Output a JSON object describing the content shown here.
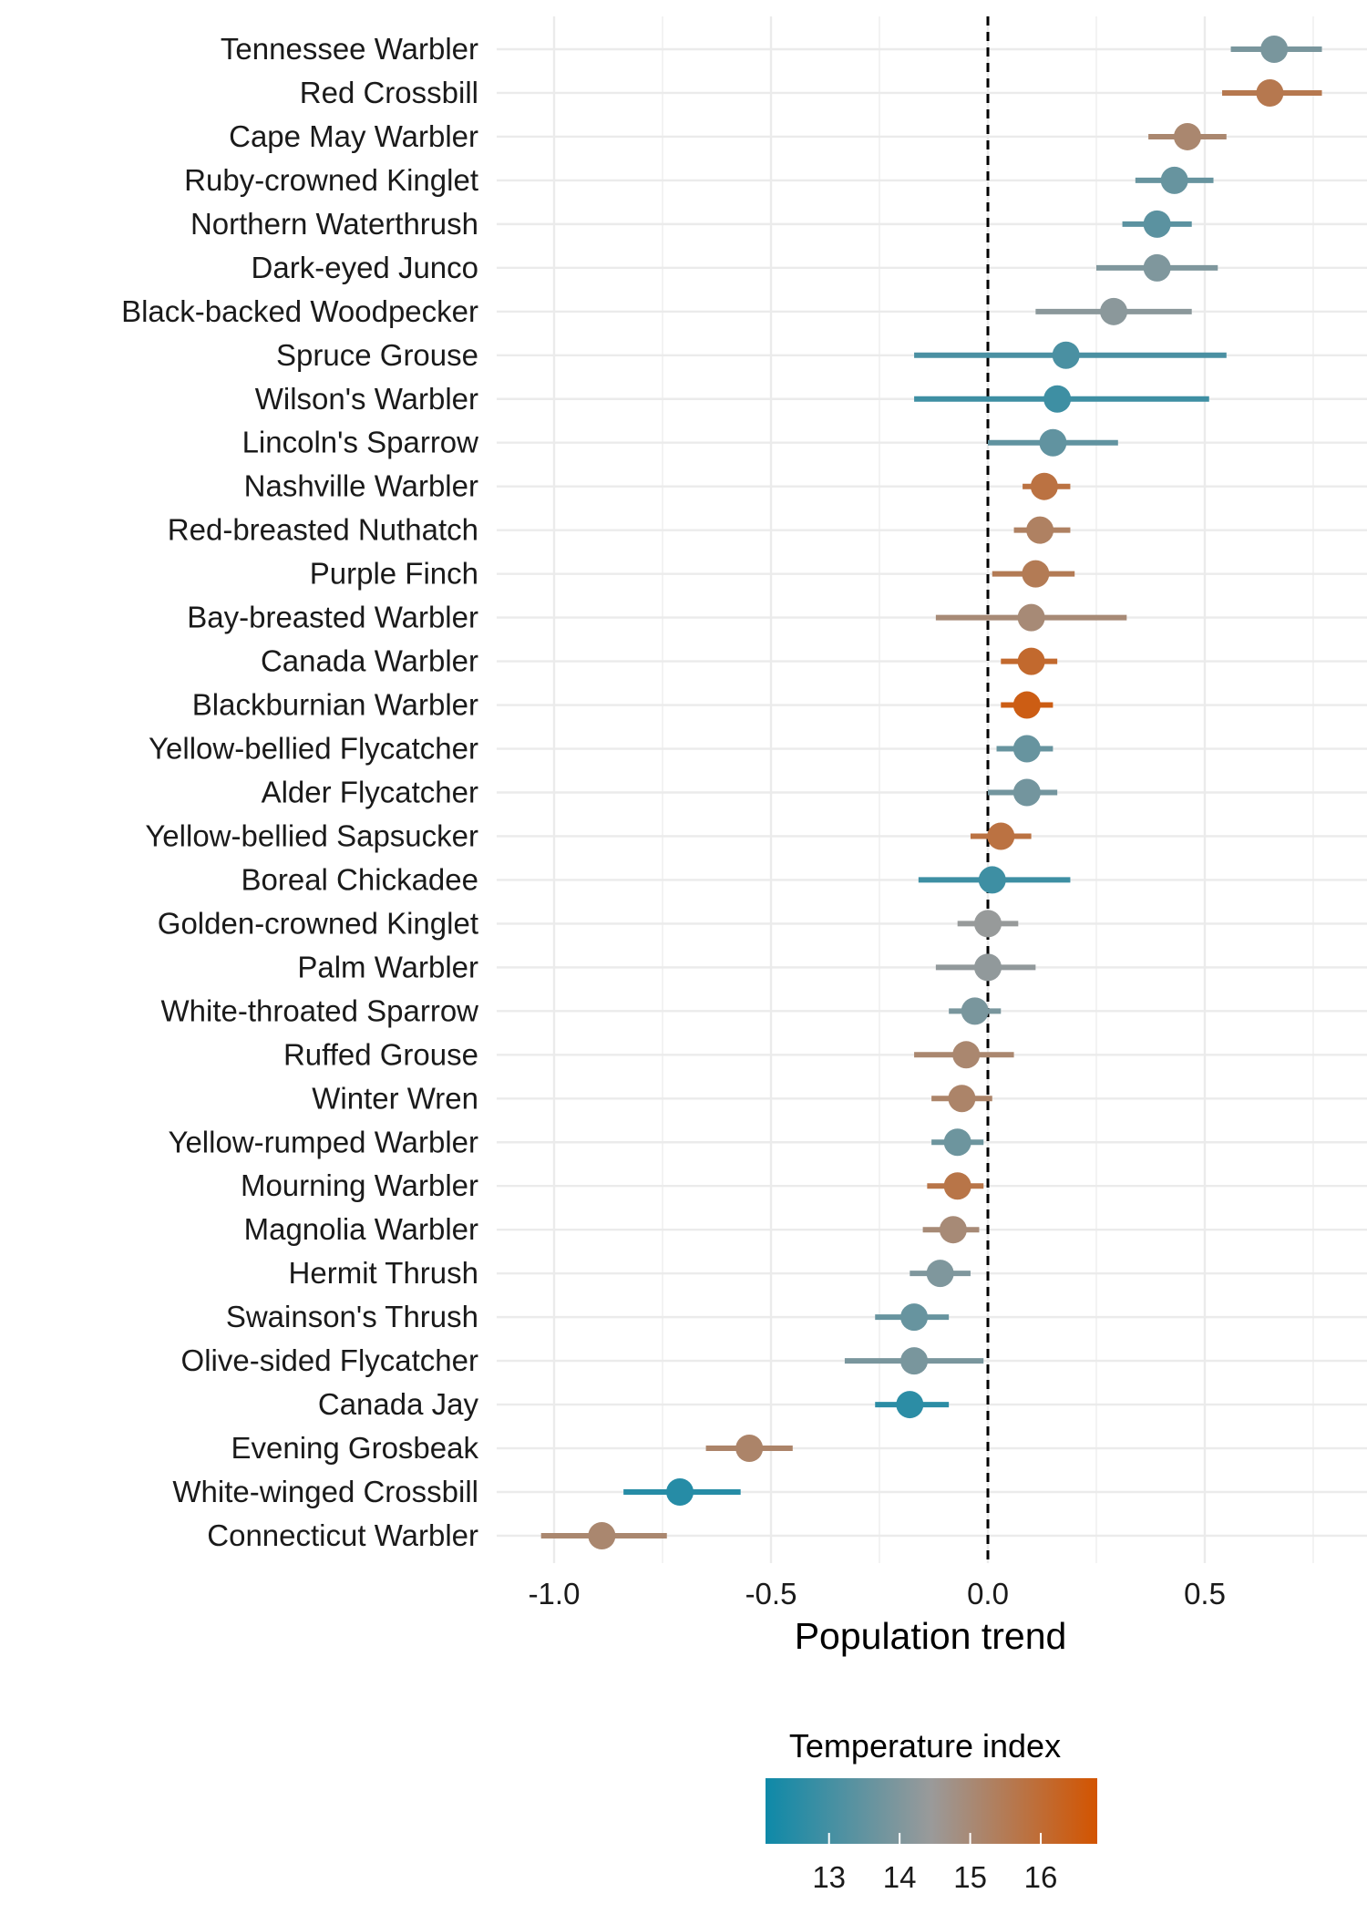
{
  "chart_data": {
    "type": "scatter",
    "subtype": "dot-and-whisker",
    "xlabel": "Population trend",
    "ylabel": "",
    "xlim": [
      -1.1,
      0.8
    ],
    "x_ticks": [
      -1.0,
      -0.5,
      0.0,
      0.5
    ],
    "x_tick_labels": [
      "-1.0",
      "-0.5",
      "0.0",
      "0.5"
    ],
    "grid": true,
    "reference_line": {
      "x": 0,
      "style": "dashed"
    },
    "colorbar": {
      "title": "Temperature index",
      "ticks": [
        13,
        14,
        15,
        16
      ],
      "tick_labels": [
        "13",
        "14",
        "15",
        "16"
      ],
      "range": [
        12.1,
        16.8
      ],
      "low_color": "#0e89a8",
      "mid_color": "#9a9a9a",
      "high_color": "#d35400",
      "placement": "bottom"
    },
    "species": [
      {
        "name": "Tennessee Warbler",
        "estimate": 0.66,
        "lower": 0.56,
        "upper": 0.77,
        "temp": 13.9
      },
      {
        "name": "Red Crossbill",
        "estimate": 0.65,
        "lower": 0.54,
        "upper": 0.77,
        "temp": 15.6
      },
      {
        "name": "Cape May Warbler",
        "estimate": 0.46,
        "lower": 0.37,
        "upper": 0.55,
        "temp": 15.1
      },
      {
        "name": "Ruby-crowned Kinglet",
        "estimate": 0.43,
        "lower": 0.34,
        "upper": 0.52,
        "temp": 13.6
      },
      {
        "name": "Northern Waterthrush",
        "estimate": 0.39,
        "lower": 0.31,
        "upper": 0.47,
        "temp": 13.4
      },
      {
        "name": "Dark-eyed Junco",
        "estimate": 0.39,
        "lower": 0.25,
        "upper": 0.53,
        "temp": 14.0
      },
      {
        "name": "Black-backed Woodpecker",
        "estimate": 0.29,
        "lower": 0.11,
        "upper": 0.47,
        "temp": 14.2
      },
      {
        "name": "Spruce Grouse",
        "estimate": 0.18,
        "lower": -0.17,
        "upper": 0.55,
        "temp": 13.1
      },
      {
        "name": "Wilson's Warbler",
        "estimate": 0.16,
        "lower": -0.17,
        "upper": 0.51,
        "temp": 12.9
      },
      {
        "name": "Lincoln's Sparrow",
        "estimate": 0.15,
        "lower": 0.0,
        "upper": 0.3,
        "temp": 13.5
      },
      {
        "name": "Nashville Warbler",
        "estimate": 0.13,
        "lower": 0.08,
        "upper": 0.19,
        "temp": 15.8
      },
      {
        "name": "Red-breasted Nuthatch",
        "estimate": 0.12,
        "lower": 0.06,
        "upper": 0.19,
        "temp": 15.3
      },
      {
        "name": "Purple Finch",
        "estimate": 0.11,
        "lower": 0.01,
        "upper": 0.2,
        "temp": 15.5
      },
      {
        "name": "Bay-breasted Warbler",
        "estimate": 0.1,
        "lower": -0.12,
        "upper": 0.32,
        "temp": 15.0
      },
      {
        "name": "Canada Warbler",
        "estimate": 0.1,
        "lower": 0.03,
        "upper": 0.16,
        "temp": 16.1
      },
      {
        "name": "Blackburnian Warbler",
        "estimate": 0.09,
        "lower": 0.03,
        "upper": 0.15,
        "temp": 16.5
      },
      {
        "name": "Yellow-bellied Flycatcher",
        "estimate": 0.09,
        "lower": 0.02,
        "upper": 0.15,
        "temp": 13.6
      },
      {
        "name": "Alder Flycatcher",
        "estimate": 0.09,
        "lower": 0.0,
        "upper": 0.16,
        "temp": 13.8
      },
      {
        "name": "Yellow-bellied Sapsucker",
        "estimate": 0.03,
        "lower": -0.04,
        "upper": 0.1,
        "temp": 15.8
      },
      {
        "name": "Boreal Chickadee",
        "estimate": 0.01,
        "lower": -0.16,
        "upper": 0.19,
        "temp": 12.9
      },
      {
        "name": "Golden-crowned Kinglet",
        "estimate": 0.0,
        "lower": -0.07,
        "upper": 0.07,
        "temp": 14.4
      },
      {
        "name": "Palm Warbler",
        "estimate": 0.0,
        "lower": -0.12,
        "upper": 0.11,
        "temp": 14.3
      },
      {
        "name": "White-throated Sparrow",
        "estimate": -0.03,
        "lower": -0.09,
        "upper": 0.03,
        "temp": 13.9
      },
      {
        "name": "Ruffed Grouse",
        "estimate": -0.05,
        "lower": -0.17,
        "upper": 0.06,
        "temp": 15.1
      },
      {
        "name": "Winter Wren",
        "estimate": -0.06,
        "lower": -0.13,
        "upper": 0.01,
        "temp": 15.2
      },
      {
        "name": "Yellow-rumped Warbler",
        "estimate": -0.07,
        "lower": -0.13,
        "upper": -0.01,
        "temp": 13.7
      },
      {
        "name": "Mourning Warbler",
        "estimate": -0.07,
        "lower": -0.14,
        "upper": -0.01,
        "temp": 15.7
      },
      {
        "name": "Magnolia Warbler",
        "estimate": -0.08,
        "lower": -0.15,
        "upper": -0.02,
        "temp": 15.0
      },
      {
        "name": "Hermit Thrush",
        "estimate": -0.11,
        "lower": -0.18,
        "upper": -0.04,
        "temp": 14.0
      },
      {
        "name": "Swainson's Thrush",
        "estimate": -0.17,
        "lower": -0.26,
        "upper": -0.09,
        "temp": 13.6
      },
      {
        "name": "Olive-sided Flycatcher",
        "estimate": -0.17,
        "lower": -0.33,
        "upper": -0.01,
        "temp": 13.9
      },
      {
        "name": "Canada Jay",
        "estimate": -0.18,
        "lower": -0.26,
        "upper": -0.09,
        "temp": 12.6
      },
      {
        "name": "Evening Grosbeak",
        "estimate": -0.55,
        "lower": -0.65,
        "upper": -0.45,
        "temp": 15.2
      },
      {
        "name": "White-winged Crossbill",
        "estimate": -0.71,
        "lower": -0.84,
        "upper": -0.57,
        "temp": 12.5
      },
      {
        "name": "Connecticut Warbler",
        "estimate": -0.89,
        "lower": -1.03,
        "upper": -0.74,
        "temp": 15.1
      }
    ]
  }
}
